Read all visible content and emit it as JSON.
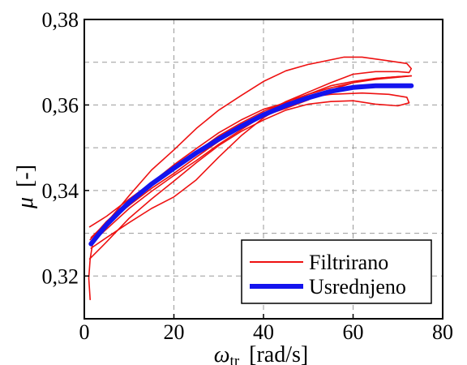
{
  "chart_data": {
    "type": "line",
    "title": "",
    "xlabel": {
      "symbol": "ω",
      "subscript": "tr",
      "unit": "[rad/s]"
    },
    "ylabel": {
      "symbol": "μ",
      "unit": "[-]"
    },
    "xlim": [
      0,
      80
    ],
    "ylim": [
      0.31,
      0.38
    ],
    "xticks": [
      0,
      20,
      40,
      60,
      80
    ],
    "yticks": [
      0.32,
      0.34,
      0.36,
      0.38
    ],
    "xtick_labels": [
      "0",
      "20",
      "40",
      "60",
      "80"
    ],
    "ytick_labels": [
      "0,32",
      "0,34",
      "0,36",
      "0,38"
    ],
    "grid": true,
    "legend_position": "bottom-right",
    "series": [
      {
        "name": "Filtrirano",
        "color": "#ee1111",
        "style": "thin",
        "paths": [
          [
            [
              1.5,
              0.329
            ],
            [
              5,
              0.3325
            ],
            [
              10,
              0.3365
            ],
            [
              15,
              0.3405
            ],
            [
              20,
              0.344
            ],
            [
              25,
              0.3478
            ],
            [
              30,
              0.3515
            ],
            [
              35,
              0.355
            ],
            [
              40,
              0.358
            ],
            [
              45,
              0.3608
            ],
            [
              50,
              0.363
            ],
            [
              55,
              0.3652
            ],
            [
              60,
              0.3672
            ],
            [
              65,
              0.3678
            ],
            [
              70,
              0.3678
            ],
            [
              72.5,
              0.3676
            ],
            [
              73,
              0.3685
            ],
            [
              72,
              0.3697
            ],
            [
              68,
              0.3703
            ],
            [
              62,
              0.3712
            ],
            [
              58,
              0.3712
            ],
            [
              50,
              0.3695
            ],
            [
              45,
              0.368
            ],
            [
              40,
              0.3655
            ],
            [
              35,
              0.3622
            ],
            [
              30,
              0.3588
            ],
            [
              25,
              0.3545
            ],
            [
              20,
              0.3495
            ],
            [
              15,
              0.3448
            ],
            [
              10,
              0.3388
            ],
            [
              5,
              0.3325
            ],
            [
              2,
              0.3285
            ],
            [
              1.3,
              0.324
            ],
            [
              1,
              0.3195
            ],
            [
              1.3,
              0.3145
            ]
          ],
          [
            [
              1.2,
              0.3315
            ],
            [
              5,
              0.334
            ],
            [
              10,
              0.338
            ],
            [
              15,
              0.3418
            ],
            [
              20,
              0.3455
            ],
            [
              25,
              0.349
            ],
            [
              30,
              0.3528
            ],
            [
              35,
              0.3558
            ],
            [
              40,
              0.3585
            ],
            [
              45,
              0.3607
            ],
            [
              50,
              0.3625
            ],
            [
              55,
              0.364
            ],
            [
              60,
              0.3652
            ],
            [
              65,
              0.366
            ],
            [
              70,
              0.3665
            ],
            [
              73,
              0.3668
            ],
            [
              70,
              0.3666
            ],
            [
              65,
              0.3662
            ],
            [
              60,
              0.3652
            ],
            [
              55,
              0.3635
            ],
            [
              50,
              0.3612
            ],
            [
              45,
              0.3592
            ],
            [
              40,
              0.3575
            ],
            [
              35,
              0.3542
            ],
            [
              30,
              0.3508
            ],
            [
              25,
              0.347
            ],
            [
              20,
              0.3435
            ],
            [
              15,
              0.3398
            ],
            [
              10,
              0.3358
            ],
            [
              5,
              0.331
            ],
            [
              1.3,
              0.3275
            ]
          ],
          [
            [
              1.2,
              0.324
            ],
            [
              5,
              0.328
            ],
            [
              10,
              0.3335
            ],
            [
              15,
              0.338
            ],
            [
              20,
              0.3422
            ],
            [
              25,
              0.3465
            ],
            [
              30,
              0.3505
            ],
            [
              35,
              0.3538
            ],
            [
              40,
              0.3565
            ],
            [
              45,
              0.3588
            ],
            [
              50,
              0.3602
            ],
            [
              55,
              0.3608
            ],
            [
              60,
              0.361
            ],
            [
              65,
              0.3602
            ],
            [
              70,
              0.3598
            ],
            [
              72.5,
              0.3605
            ],
            [
              72,
              0.3618
            ],
            [
              68,
              0.3625
            ],
            [
              62,
              0.3628
            ],
            [
              55,
              0.3625
            ],
            [
              50,
              0.3618
            ],
            [
              45,
              0.3605
            ],
            [
              40,
              0.359
            ],
            [
              35,
              0.3565
            ],
            [
              30,
              0.3535
            ],
            [
              25,
              0.3498
            ],
            [
              20,
              0.346
            ],
            [
              15,
              0.3418
            ],
            [
              10,
              0.3375
            ],
            [
              5,
              0.3328
            ],
            [
              1.3,
              0.3285
            ]
          ],
          [
            [
              1.5,
              0.3265
            ],
            [
              5,
              0.329
            ],
            [
              10,
              0.3325
            ],
            [
              15,
              0.3358
            ],
            [
              20,
              0.3385
            ],
            [
              25,
              0.3425
            ],
            [
              30,
              0.3478
            ],
            [
              35,
              0.3528
            ],
            [
              40,
              0.357
            ],
            [
              45,
              0.3602
            ],
            [
              50,
              0.3625
            ],
            [
              55,
              0.3645
            ],
            [
              60,
              0.3655
            ],
            [
              65,
              0.3662
            ],
            [
              70,
              0.3666
            ],
            [
              73,
              0.3668
            ]
          ]
        ]
      },
      {
        "name": "Usrednjeno",
        "color": "#1414ee",
        "style": "thick",
        "paths": [
          [
            [
              1.5,
              0.3275
            ],
            [
              3,
              0.3295
            ],
            [
              5,
              0.332
            ],
            [
              8,
              0.3352
            ],
            [
              10,
              0.3372
            ],
            [
              15,
              0.3415
            ],
            [
              20,
              0.3452
            ],
            [
              25,
              0.3488
            ],
            [
              30,
              0.352
            ],
            [
              35,
              0.355
            ],
            [
              40,
              0.3577
            ],
            [
              45,
              0.3599
            ],
            [
              50,
              0.3617
            ],
            [
              55,
              0.3632
            ],
            [
              60,
              0.3641
            ],
            [
              65,
              0.3645
            ],
            [
              70,
              0.3645
            ],
            [
              73,
              0.3645
            ]
          ]
        ]
      }
    ]
  }
}
